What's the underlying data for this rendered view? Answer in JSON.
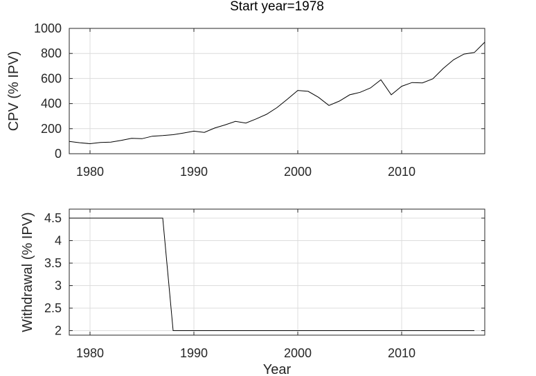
{
  "title": "Start year=1978",
  "chart_data": [
    {
      "type": "line",
      "title": "Start year=1978",
      "xlabel": "",
      "ylabel": "CPV (% IPV)",
      "xlim": [
        1978,
        2018
      ],
      "ylim": [
        0,
        1000
      ],
      "xticks": [
        1980,
        1990,
        2000,
        2010
      ],
      "yticks": [
        0,
        200,
        400,
        600,
        800,
        1000
      ],
      "grid": true,
      "x": [
        1978,
        1979,
        1980,
        1981,
        1982,
        1983,
        1984,
        1985,
        1986,
        1987,
        1988,
        1989,
        1990,
        1991,
        1992,
        1993,
        1994,
        1995,
        1996,
        1997,
        1998,
        1999,
        2000,
        2001,
        2002,
        2003,
        2004,
        2005,
        2006,
        2007,
        2008,
        2009,
        2010,
        2011,
        2012,
        2013,
        2014,
        2015,
        2016,
        2017,
        2018
      ],
      "series": [
        {
          "values": [
            98,
            88,
            80,
            90,
            92,
            106,
            123,
            120,
            140,
            145,
            152,
            165,
            180,
            170,
            205,
            230,
            258,
            245,
            278,
            315,
            368,
            435,
            505,
            498,
            450,
            385,
            420,
            470,
            490,
            525,
            590,
            470,
            538,
            568,
            565,
            598,
            680,
            750,
            795,
            808,
            890
          ]
        }
      ]
    },
    {
      "type": "line",
      "xlabel": "Year",
      "ylabel": "Withdrawal (% IPV)",
      "xlim": [
        1978,
        2018
      ],
      "ylim": [
        1.9,
        4.7
      ],
      "xticks": [
        1980,
        1990,
        2000,
        2010
      ],
      "yticks": [
        2,
        2.5,
        3,
        3.5,
        4,
        4.5
      ],
      "grid": true,
      "x": [
        1978,
        1987,
        1988,
        2017
      ],
      "series": [
        {
          "values": [
            4.5,
            4.5,
            2,
            2
          ]
        }
      ]
    }
  ]
}
